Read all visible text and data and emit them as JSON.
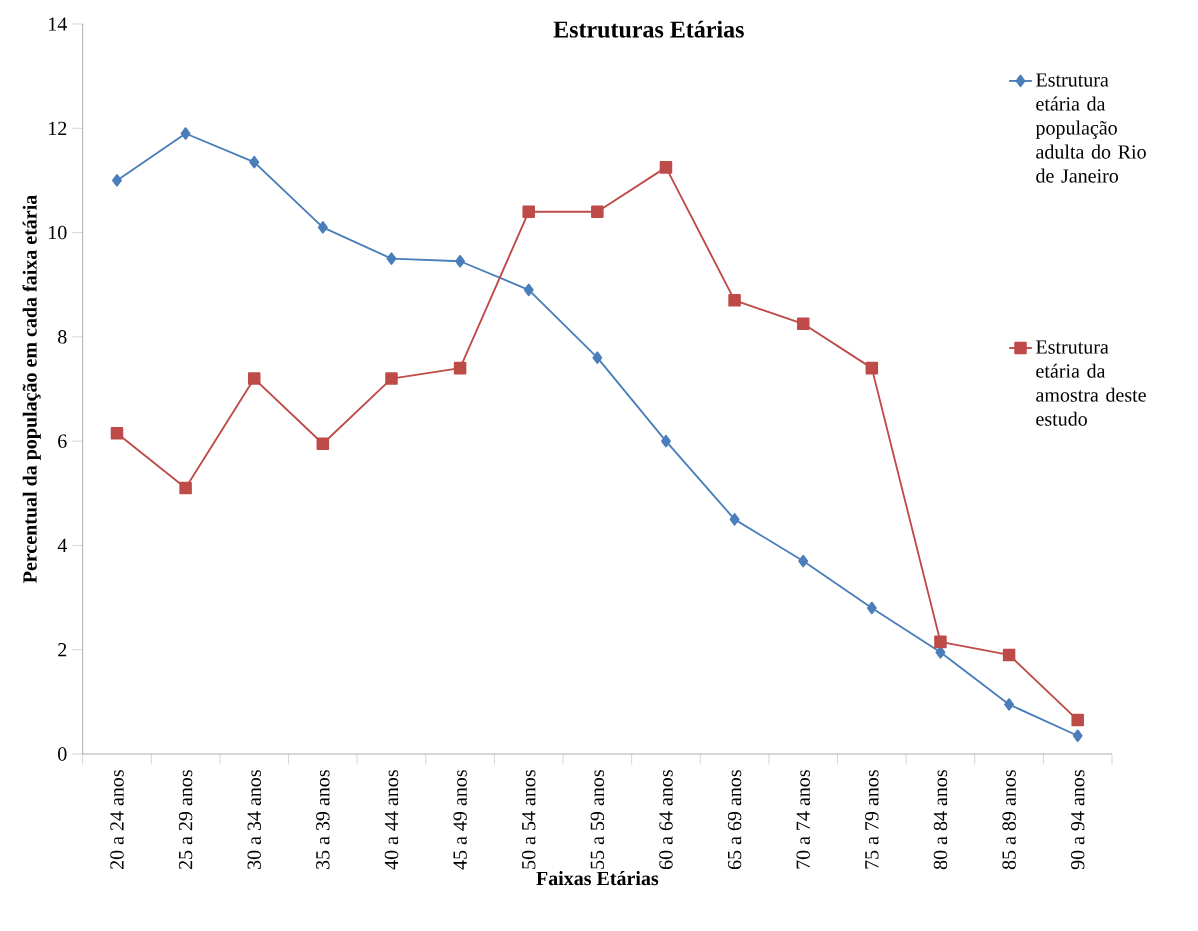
{
  "chart_data": {
    "type": "line",
    "title": "Estruturas Etárias",
    "xlabel": "Faixas Etárias",
    "ylabel": "Percentual da população em cada faixa etária",
    "categories": [
      "20 a 24 anos",
      "25 a 29 anos",
      "30 a 34 anos",
      "35 a 39 anos",
      "40 a 44 anos",
      "45 a 49 anos",
      "50 a 54 anos",
      "55 a 59 anos",
      "60 a 64 anos",
      "65 a 69 anos",
      "70 a 74 anos",
      "75 a 79 anos",
      "80 a 84 anos",
      "85 a 89 anos",
      "90 a 94 anos"
    ],
    "series": [
      {
        "name": "Estrutura etária da população adulta do Rio de Janeiro",
        "color": "#4a7ebb",
        "marker": "diamond",
        "values": [
          11.0,
          11.9,
          11.35,
          10.1,
          9.5,
          9.45,
          8.9,
          7.6,
          6.0,
          4.5,
          3.7,
          2.8,
          1.95,
          0.95,
          0.35
        ]
      },
      {
        "name": "Estrutura etária da amostra deste estudo",
        "color": "#be4b48",
        "marker": "square",
        "values": [
          6.15,
          5.1,
          7.2,
          5.95,
          7.2,
          7.4,
          10.4,
          10.4,
          11.25,
          8.7,
          8.25,
          7.4,
          2.15,
          1.9,
          0.65
        ]
      }
    ],
    "ylim": [
      0,
      14
    ],
    "yticks": [
      0,
      2,
      4,
      6,
      8,
      10,
      12,
      14
    ],
    "grid": false,
    "legend": "right",
    "line_style": "solid"
  }
}
